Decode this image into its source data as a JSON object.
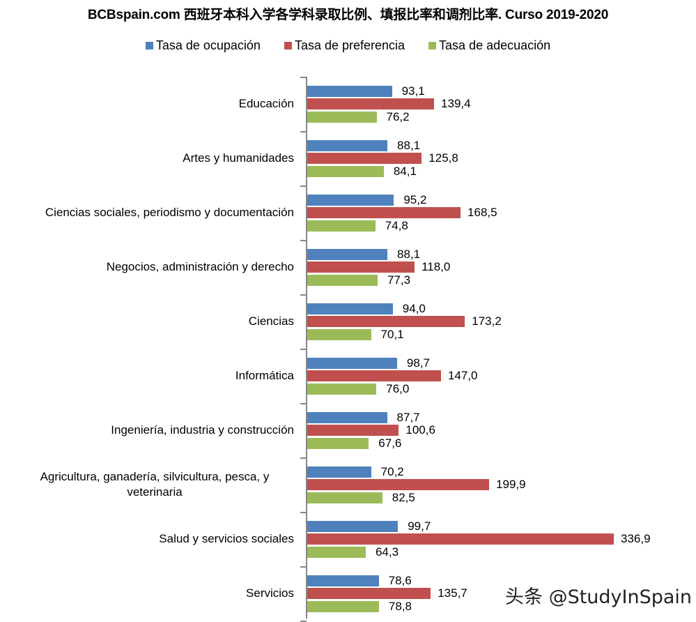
{
  "title": "BCBspain.com 西班牙本科入学各学科录取比例、填报比率和调剂比率. Curso 2019-2020",
  "legend": [
    {
      "label": "Tasa de  ocupación",
      "color": "#4F81BD"
    },
    {
      "label": "Tasa de  preferencia",
      "color": "#C0504D"
    },
    {
      "label": "Tasa de  adecuación",
      "color": "#9BBB59"
    }
  ],
  "watermark": "头条 @StudyInSpain",
  "chart_data": {
    "type": "bar",
    "orientation": "horizontal",
    "title": "BCBspain.com 西班牙本科入学各学科录取比例、填报比率和调剂比率. Curso 2019-2020",
    "xlabel": "",
    "ylabel": "",
    "legend_position": "top",
    "grid": false,
    "xlim": [
      0,
      340
    ],
    "categories": [
      "Educación",
      "Artes y humanidades",
      "Ciencias sociales, periodismo y documentación",
      "Negocios, administración y derecho",
      "Ciencias",
      "Informática",
      "Ingeniería, industria y construcción",
      "Agricultura, ganadería,  silvicultura, pesca, y veterinaria",
      "Salud y servicios sociales",
      "Servicios"
    ],
    "series": [
      {
        "name": "Tasa de  ocupación",
        "color": "#4F81BD",
        "values": [
          93.1,
          88.1,
          95.2,
          88.1,
          94.0,
          98.7,
          87.7,
          70.2,
          99.7,
          78.6
        ],
        "labels": [
          "93,1",
          "88,1",
          "95,2",
          "88,1",
          "94,0",
          "98,7",
          "87,7",
          "70,2",
          "99,7",
          "78,6"
        ]
      },
      {
        "name": "Tasa de  preferencia",
        "color": "#C0504D",
        "values": [
          139.4,
          125.8,
          168.5,
          118.0,
          173.2,
          147.0,
          100.6,
          199.9,
          336.9,
          135.7
        ],
        "labels": [
          "139,4",
          "125,8",
          "168,5",
          "118,0",
          "173,2",
          "147,0",
          "100,6",
          "199,9",
          "336,9",
          "135,7"
        ]
      },
      {
        "name": "Tasa de  adecuación",
        "color": "#9BBB59",
        "values": [
          76.2,
          84.1,
          74.8,
          77.3,
          70.1,
          76.0,
          67.6,
          82.5,
          64.3,
          78.8
        ],
        "labels": [
          "76,2",
          "84,1",
          "74,8",
          "77,3",
          "70,1",
          "76,0",
          "67,6",
          "82,5",
          "64,3",
          "78,8"
        ]
      }
    ]
  }
}
